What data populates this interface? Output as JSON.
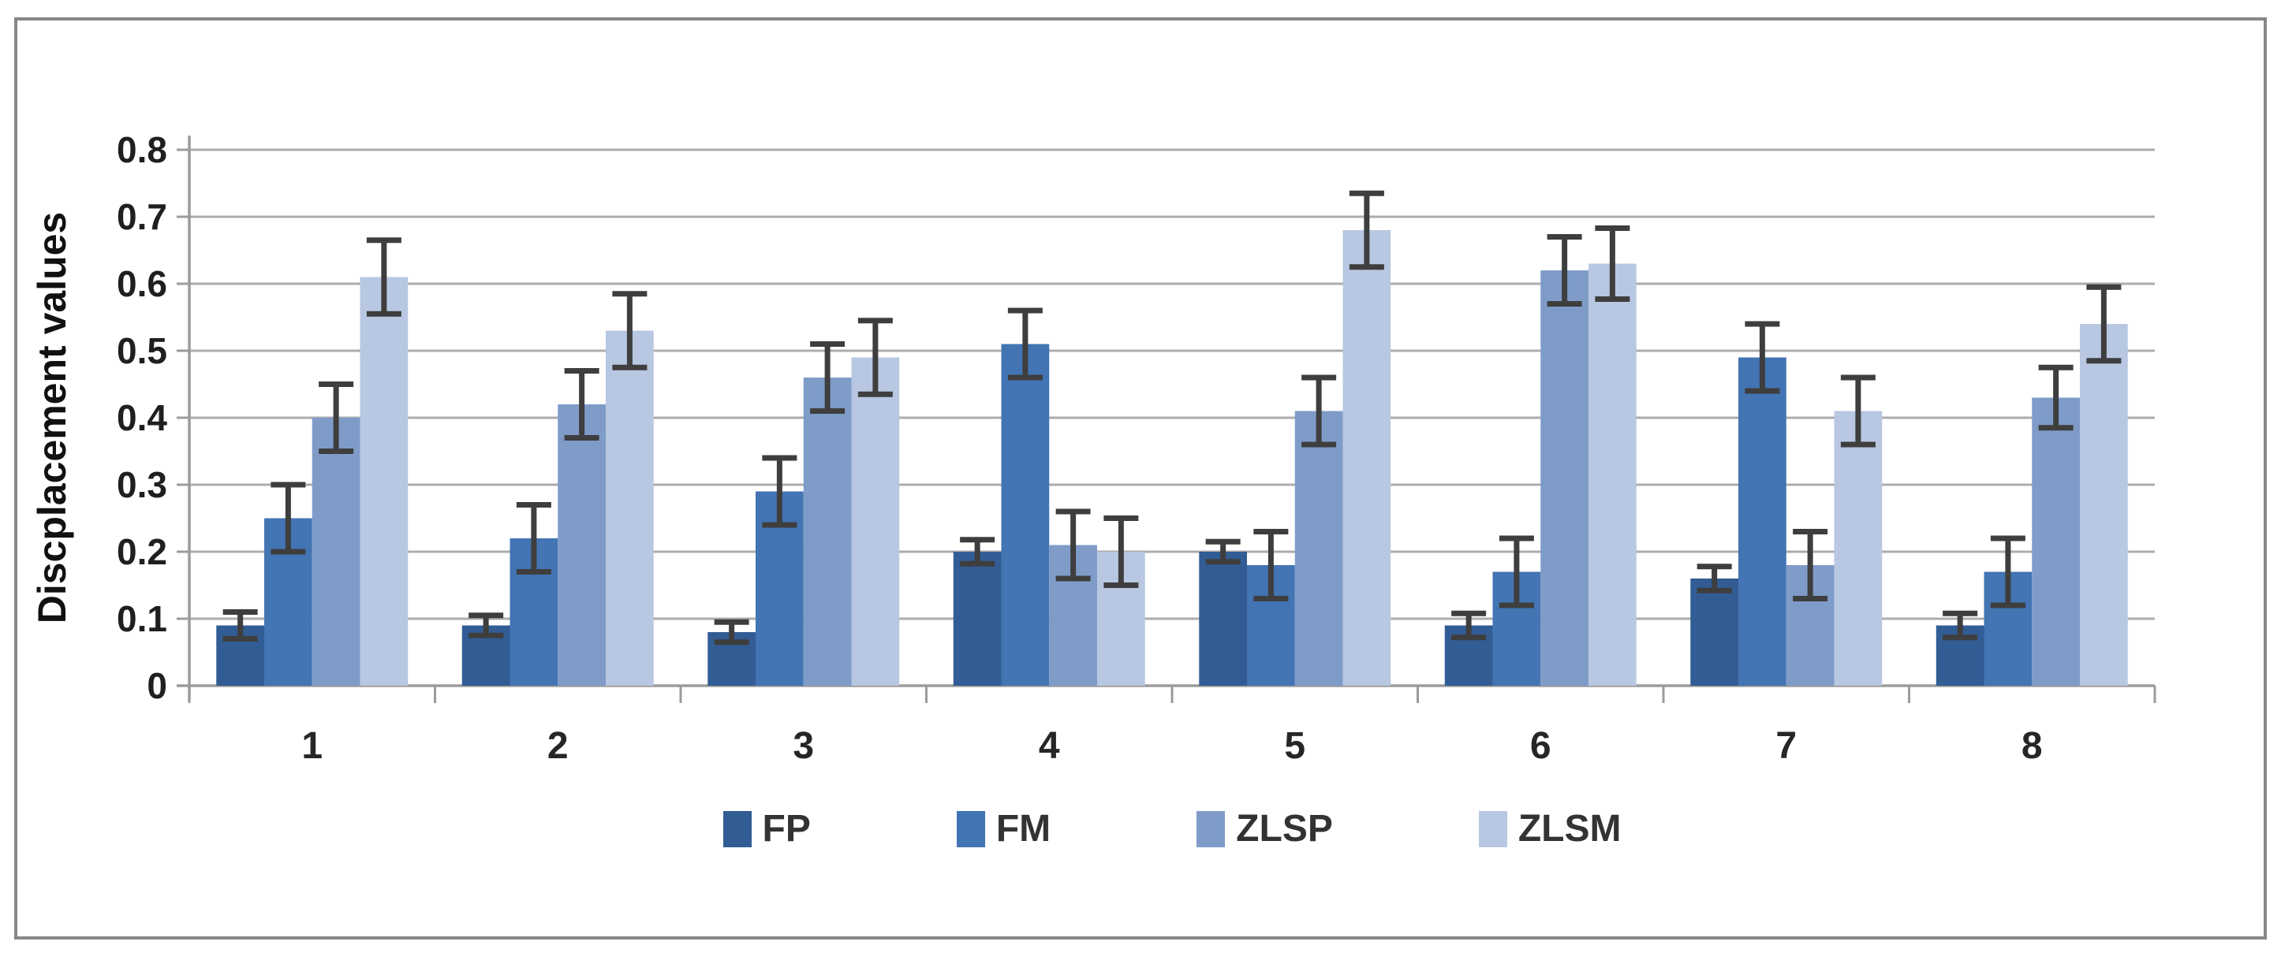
{
  "chart_data": {
    "type": "bar",
    "title": "",
    "ylabel": "Discplacement values",
    "xlabel": "",
    "categories": [
      "1",
      "2",
      "3",
      "4",
      "5",
      "6",
      "7",
      "8"
    ],
    "ylim": [
      0,
      0.8
    ],
    "ytick_step": 0.1,
    "yticks": [
      "0",
      "0.1",
      "0.2",
      "0.3",
      "0.4",
      "0.5",
      "0.6",
      "0.7",
      "0.8"
    ],
    "grid": true,
    "legend_position": "bottom",
    "error_bars": true,
    "series": [
      {
        "name": "FP",
        "color": "#325C94",
        "values": [
          0.09,
          0.09,
          0.08,
          0.2,
          0.2,
          0.09,
          0.16,
          0.09
        ],
        "errors": [
          0.02,
          0.015,
          0.015,
          0.018,
          0.015,
          0.018,
          0.018,
          0.018
        ]
      },
      {
        "name": "FM",
        "color": "#4374B3",
        "values": [
          0.25,
          0.22,
          0.29,
          0.51,
          0.18,
          0.17,
          0.49,
          0.17
        ],
        "errors": [
          0.05,
          0.05,
          0.05,
          0.05,
          0.05,
          0.05,
          0.05,
          0.05
        ]
      },
      {
        "name": "ZLSP",
        "color": "#7F9CC9",
        "values": [
          0.4,
          0.42,
          0.46,
          0.21,
          0.41,
          0.62,
          0.18,
          0.43
        ],
        "errors": [
          0.05,
          0.05,
          0.05,
          0.05,
          0.05,
          0.05,
          0.05,
          0.045
        ]
      },
      {
        "name": "ZLSM",
        "color": "#B8C7E2",
        "values": [
          0.61,
          0.53,
          0.49,
          0.2,
          0.68,
          0.63,
          0.41,
          0.54
        ],
        "errors": [
          0.055,
          0.055,
          0.055,
          0.05,
          0.055,
          0.053,
          0.05,
          0.055
        ]
      }
    ],
    "colors": {
      "gridline": "#ACACAC",
      "axis": "#9B9B9B",
      "error_bar": "#3E3E3E",
      "frame_border": "#878787"
    }
  }
}
